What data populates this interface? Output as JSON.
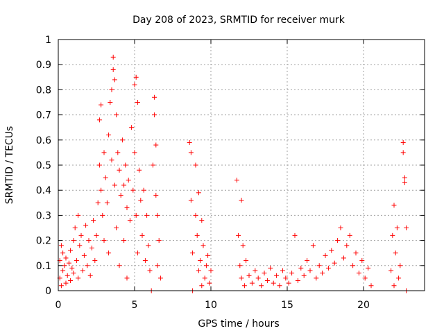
{
  "chart_data": {
    "type": "scatter",
    "title": "Day 208 of 2023, SRMTID for receiver murk",
    "xlabel": "GPS time / hours",
    "ylabel": "SRMTID / TECUs",
    "xlim": [
      0,
      24
    ],
    "ylim": [
      0,
      1
    ],
    "xticks": [
      0,
      5,
      10,
      15,
      20
    ],
    "xtick_labels": [
      "0",
      "5",
      "10",
      "15",
      "20"
    ],
    "yticks": [
      0,
      0.1,
      0.2,
      0.3,
      0.4,
      0.5,
      0.6,
      0.7,
      0.8,
      0.9,
      1
    ],
    "ytick_labels": [
      "0",
      "0.1",
      "0.2",
      "0.3",
      "0.4",
      "0.5",
      "0.6",
      "0.7",
      "0.8",
      "0.9",
      "1"
    ],
    "grid": true,
    "marker": "+",
    "marker_color": "#ff0000",
    "series": [
      {
        "points": [
          [
            0.1,
            0.05
          ],
          [
            0.1,
            0.12
          ],
          [
            0.2,
            0.18
          ],
          [
            0.2,
            0.02
          ],
          [
            0.3,
            0.08
          ],
          [
            0.3,
            0.15
          ],
          [
            0.4,
            0.1
          ],
          [
            0.5,
            0.03
          ],
          [
            0.5,
            0.13
          ],
          [
            0.6,
            0.06
          ],
          [
            0.7,
            0.11
          ],
          [
            0.8,
            0.04
          ],
          [
            0.8,
            0.16
          ],
          [
            0.9,
            0.09
          ],
          [
            1.0,
            0.2
          ],
          [
            1.0,
            0.07
          ],
          [
            1.1,
            0.25
          ],
          [
            1.2,
            0.12
          ],
          [
            1.3,
            0.3
          ],
          [
            1.3,
            0.05
          ],
          [
            1.4,
            0.18
          ],
          [
            1.5,
            0.22
          ],
          [
            1.6,
            0.08
          ],
          [
            1.7,
            0.14
          ],
          [
            1.8,
            0.26
          ],
          [
            1.9,
            0.1
          ],
          [
            2.0,
            0.2
          ],
          [
            2.1,
            0.06
          ],
          [
            2.2,
            0.17
          ],
          [
            2.3,
            0.28
          ],
          [
            2.4,
            0.12
          ],
          [
            2.5,
            0.22
          ],
          [
            2.6,
            0.35
          ],
          [
            2.7,
            0.5
          ],
          [
            2.7,
            0.68
          ],
          [
            2.8,
            0.74
          ],
          [
            2.8,
            0.4
          ],
          [
            2.9,
            0.3
          ],
          [
            3.0,
            0.55
          ],
          [
            3.0,
            0.2
          ],
          [
            3.1,
            0.45
          ],
          [
            3.2,
            0.35
          ],
          [
            3.3,
            0.62
          ],
          [
            3.3,
            0.15
          ],
          [
            3.4,
            0.75
          ],
          [
            3.5,
            0.8
          ],
          [
            3.5,
            0.52
          ],
          [
            3.6,
            0.93
          ],
          [
            3.6,
            0.88
          ],
          [
            3.7,
            0.84
          ],
          [
            3.7,
            0.42
          ],
          [
            3.8,
            0.7
          ],
          [
            3.8,
            0.25
          ],
          [
            3.9,
            0.55
          ],
          [
            4.0,
            0.48
          ],
          [
            4.0,
            0.1
          ],
          [
            4.1,
            0.38
          ],
          [
            4.2,
            0.6
          ],
          [
            4.3,
            0.42
          ],
          [
            4.3,
            0.2
          ],
          [
            4.4,
            0.5
          ],
          [
            4.5,
            0.33
          ],
          [
            4.5,
            0.05
          ],
          [
            4.6,
            0.44
          ],
          [
            4.7,
            0.28
          ],
          [
            4.8,
            0.65
          ],
          [
            4.9,
            0.4
          ],
          [
            5.0,
            0.82
          ],
          [
            5.0,
            0.55
          ],
          [
            5.1,
            0.85
          ],
          [
            5.1,
            0.3
          ],
          [
            5.2,
            0.75
          ],
          [
            5.2,
            0.15
          ],
          [
            5.3,
            0.48
          ],
          [
            5.4,
            0.36
          ],
          [
            5.5,
            0.22
          ],
          [
            5.6,
            0.4
          ],
          [
            5.7,
            0.12
          ],
          [
            5.8,
            0.3
          ],
          [
            5.9,
            0.18
          ],
          [
            6.0,
            0.08
          ],
          [
            6.1,
            0.0
          ],
          [
            6.2,
            0.5
          ],
          [
            6.3,
            0.77
          ],
          [
            6.3,
            0.7
          ],
          [
            6.4,
            0.58
          ],
          [
            6.4,
            0.38
          ],
          [
            6.5,
            0.3
          ],
          [
            6.5,
            0.1
          ],
          [
            6.6,
            0.2
          ],
          [
            6.7,
            0.05
          ],
          [
            8.6,
            0.59
          ],
          [
            8.7,
            0.55
          ],
          [
            8.7,
            0.36
          ],
          [
            8.8,
            0.15
          ],
          [
            8.8,
            0.0
          ],
          [
            9.0,
            0.5
          ],
          [
            9.0,
            0.3
          ],
          [
            9.1,
            0.22
          ],
          [
            9.2,
            0.39
          ],
          [
            9.2,
            0.08
          ],
          [
            9.3,
            0.12
          ],
          [
            9.4,
            0.28
          ],
          [
            9.4,
            0.02
          ],
          [
            9.5,
            0.18
          ],
          [
            9.6,
            0.05
          ],
          [
            9.7,
            0.1
          ],
          [
            9.8,
            0.14
          ],
          [
            9.9,
            0.03
          ],
          [
            10.0,
            0.08
          ],
          [
            11.7,
            0.44
          ],
          [
            11.8,
            0.22
          ],
          [
            11.9,
            0.1
          ],
          [
            12.0,
            0.36
          ],
          [
            12.0,
            0.05
          ],
          [
            12.1,
            0.18
          ],
          [
            12.2,
            0.02
          ],
          [
            12.3,
            0.12
          ],
          [
            12.5,
            0.06
          ],
          [
            12.7,
            0.03
          ],
          [
            12.9,
            0.08
          ],
          [
            13.1,
            0.05
          ],
          [
            13.3,
            0.02
          ],
          [
            13.5,
            0.07
          ],
          [
            13.7,
            0.04
          ],
          [
            13.9,
            0.09
          ],
          [
            14.1,
            0.03
          ],
          [
            14.3,
            0.06
          ],
          [
            14.5,
            0.02
          ],
          [
            14.7,
            0.08
          ],
          [
            14.9,
            0.05
          ],
          [
            15.1,
            0.03
          ],
          [
            15.3,
            0.07
          ],
          [
            15.5,
            0.22
          ],
          [
            15.7,
            0.04
          ],
          [
            15.9,
            0.09
          ],
          [
            16.1,
            0.06
          ],
          [
            16.3,
            0.12
          ],
          [
            16.5,
            0.08
          ],
          [
            16.7,
            0.18
          ],
          [
            16.9,
            0.05
          ],
          [
            17.1,
            0.1
          ],
          [
            17.3,
            0.07
          ],
          [
            17.5,
            0.14
          ],
          [
            17.7,
            0.09
          ],
          [
            17.9,
            0.16
          ],
          [
            18.1,
            0.11
          ],
          [
            18.3,
            0.2
          ],
          [
            18.5,
            0.25
          ],
          [
            18.7,
            0.13
          ],
          [
            18.9,
            0.18
          ],
          [
            19.1,
            0.22
          ],
          [
            19.3,
            0.1
          ],
          [
            19.5,
            0.15
          ],
          [
            19.7,
            0.07
          ],
          [
            19.9,
            0.12
          ],
          [
            20.1,
            0.05
          ],
          [
            20.3,
            0.09
          ],
          [
            20.5,
            0.02
          ],
          [
            21.8,
            0.08
          ],
          [
            21.9,
            0.22
          ],
          [
            22.0,
            0.34
          ],
          [
            22.0,
            0.02
          ],
          [
            22.1,
            0.15
          ],
          [
            22.2,
            0.25
          ],
          [
            22.3,
            0.05
          ],
          [
            22.4,
            0.1
          ],
          [
            22.6,
            0.59
          ],
          [
            22.6,
            0.55
          ],
          [
            22.7,
            0.45
          ],
          [
            22.7,
            0.43
          ],
          [
            22.8,
            0.25
          ],
          [
            22.8,
            0.0
          ]
        ]
      }
    ]
  }
}
